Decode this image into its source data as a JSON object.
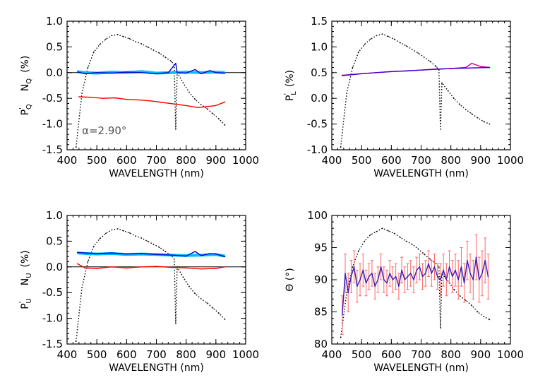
{
  "chart_data": [
    {
      "type": "line",
      "xlabel": "WAVELENGTH (nm)",
      "ylabel": "P'Q   NQ (%)",
      "ylabel_parts": {
        "left_symbol": "P",
        "left_prime": "'",
        "left_sub": "Q",
        "mid_symbol": "N",
        "mid_sub": "Q",
        "unit": "(%)"
      },
      "xlim": [
        400,
        1000
      ],
      "ylim": [
        -1.5,
        1.0
      ],
      "xticks": [
        "400",
        "500",
        "600",
        "700",
        "800",
        "900",
        "1000"
      ],
      "yticks": [
        "-1.5",
        "-1.0",
        "-0.5",
        "0.0",
        "0.5",
        "1.0"
      ],
      "zero_line": true,
      "annotation": {
        "text": "α=2.90°",
        "x": 450,
        "y": -1.2
      },
      "series": [
        {
          "key": "spectrum",
          "color": "#000000",
          "style": "dotted",
          "x": [
            430,
            450,
            470,
            490,
            510,
            530,
            550,
            570,
            590,
            610,
            630,
            650,
            670,
            690,
            710,
            730,
            750,
            760,
            765,
            770,
            790,
            810,
            830,
            850,
            870,
            890,
            910,
            930
          ],
          "y": [
            -1.45,
            -0.4,
            0.1,
            0.4,
            0.55,
            0.65,
            0.72,
            0.74,
            0.7,
            0.66,
            0.6,
            0.56,
            0.5,
            0.44,
            0.38,
            0.3,
            0.22,
            0.15,
            -1.1,
            0.0,
            -0.2,
            -0.38,
            -0.52,
            -0.62,
            -0.7,
            -0.8,
            -0.9,
            -1.02
          ]
        },
        {
          "key": "cyan_band",
          "color": "#00bfff",
          "style": "solid",
          "x": [
            435,
            460,
            500,
            550,
            600,
            650,
            700,
            750,
            800,
            850,
            900,
            930
          ],
          "y": [
            0.02,
            0.0,
            -0.01,
            0.01,
            0.0,
            0.02,
            -0.01,
            0.0,
            0.01,
            0.0,
            0.01,
            0.0
          ]
        },
        {
          "key": "NQ",
          "color": "#0000cc",
          "style": "solid",
          "x": [
            435,
            460,
            500,
            550,
            600,
            650,
            700,
            740,
            765,
            770,
            800,
            830,
            850,
            880,
            900,
            930
          ],
          "y": [
            0.01,
            -0.02,
            0.0,
            -0.01,
            0.01,
            0.0,
            -0.02,
            0.0,
            0.18,
            0.0,
            -0.01,
            0.06,
            -0.02,
            0.04,
            0.0,
            -0.01
          ]
        },
        {
          "key": "PQ",
          "color": "#ff0000",
          "style": "solid",
          "x": [
            440,
            480,
            520,
            560,
            600,
            640,
            680,
            720,
            760,
            800,
            840,
            870,
            900,
            930
          ],
          "y": [
            -0.47,
            -0.48,
            -0.5,
            -0.49,
            -0.52,
            -0.53,
            -0.55,
            -0.58,
            -0.61,
            -0.64,
            -0.68,
            -0.66,
            -0.64,
            -0.57
          ]
        }
      ]
    },
    {
      "type": "line",
      "xlabel": "WAVELENGTH (nm)",
      "ylabel": "P'L (%)",
      "ylabel_parts": {
        "left_symbol": "P",
        "left_prime": "'",
        "left_sub": "L",
        "unit": "(%)"
      },
      "xlim": [
        400,
        1000
      ],
      "ylim": [
        -1.0,
        1.5
      ],
      "xticks": [
        "400",
        "500",
        "600",
        "700",
        "800",
        "900",
        "1000"
      ],
      "yticks": [
        "-1.0",
        "-0.5",
        "0.0",
        "0.5",
        "1.0",
        "1.5"
      ],
      "series": [
        {
          "key": "spectrum",
          "color": "#000000",
          "style": "dotted",
          "x": [
            430,
            450,
            470,
            490,
            510,
            530,
            550,
            570,
            590,
            610,
            630,
            650,
            670,
            690,
            710,
            730,
            750,
            760,
            765,
            770,
            790,
            810,
            830,
            850,
            870,
            890,
            910,
            930
          ],
          "y": [
            -0.95,
            0.1,
            0.6,
            0.9,
            1.05,
            1.15,
            1.22,
            1.25,
            1.2,
            1.15,
            1.08,
            1.02,
            0.95,
            0.88,
            0.8,
            0.72,
            0.62,
            0.55,
            -0.6,
            0.3,
            0.15,
            0.0,
            -0.12,
            -0.22,
            -0.3,
            -0.38,
            -0.45,
            -0.5
          ]
        },
        {
          "key": "PL",
          "color": "#cc0099",
          "style": "solid",
          "x": [
            435,
            460,
            500,
            550,
            600,
            650,
            700,
            750,
            800,
            850,
            870,
            900,
            930
          ],
          "y": [
            0.45,
            0.46,
            0.48,
            0.5,
            0.52,
            0.53,
            0.55,
            0.57,
            0.58,
            0.6,
            0.68,
            0.62,
            0.6
          ]
        },
        {
          "key": "PL_fit",
          "color": "#4400cc",
          "style": "solid",
          "x": [
            435,
            500,
            600,
            700,
            800,
            930
          ],
          "y": [
            0.44,
            0.48,
            0.52,
            0.55,
            0.58,
            0.6
          ]
        }
      ]
    },
    {
      "type": "line",
      "xlabel": "WAVELENGTH (nm)",
      "ylabel": "P'U   NU (%)",
      "ylabel_parts": {
        "left_symbol": "P",
        "left_prime": "'",
        "left_sub": "U",
        "mid_symbol": "N",
        "mid_sub": "U",
        "unit": "(%)"
      },
      "xlim": [
        400,
        1000
      ],
      "ylim": [
        -1.5,
        1.0
      ],
      "xticks": [
        "400",
        "500",
        "600",
        "700",
        "800",
        "900",
        "1000"
      ],
      "yticks": [
        "-1.5",
        "-1.0",
        "-0.5",
        "0.0",
        "0.5",
        "1.0"
      ],
      "zero_line": true,
      "series": [
        {
          "key": "spectrum",
          "color": "#000000",
          "style": "dotted",
          "x": [
            430,
            450,
            470,
            490,
            510,
            530,
            550,
            570,
            590,
            610,
            630,
            650,
            670,
            690,
            710,
            730,
            750,
            760,
            765,
            770,
            790,
            810,
            830,
            850,
            870,
            890,
            910,
            930
          ],
          "y": [
            -1.45,
            -0.4,
            0.1,
            0.4,
            0.55,
            0.65,
            0.72,
            0.74,
            0.7,
            0.66,
            0.6,
            0.56,
            0.5,
            0.44,
            0.38,
            0.3,
            0.22,
            0.15,
            -1.1,
            0.0,
            -0.2,
            -0.38,
            -0.52,
            -0.62,
            -0.7,
            -0.8,
            -0.9,
            -1.02
          ]
        },
        {
          "key": "cyan_band",
          "color": "#00bfff",
          "style": "solid",
          "x": [
            435,
            460,
            500,
            550,
            600,
            650,
            700,
            750,
            800,
            850,
            900,
            930
          ],
          "y": [
            0.27,
            0.26,
            0.25,
            0.26,
            0.24,
            0.25,
            0.24,
            0.23,
            0.22,
            0.23,
            0.24,
            0.21
          ]
        },
        {
          "key": "NU",
          "color": "#0000cc",
          "style": "solid",
          "x": [
            435,
            460,
            500,
            550,
            600,
            650,
            700,
            750,
            800,
            830,
            850,
            880,
            900,
            930
          ],
          "y": [
            0.28,
            0.27,
            0.26,
            0.27,
            0.25,
            0.26,
            0.24,
            0.23,
            0.21,
            0.3,
            0.22,
            0.26,
            0.25,
            0.2
          ]
        },
        {
          "key": "PU",
          "color": "#ff0000",
          "style": "solid",
          "x": [
            435,
            460,
            500,
            550,
            600,
            650,
            700,
            750,
            800,
            850,
            900,
            930
          ],
          "y": [
            0.06,
            -0.02,
            -0.03,
            0.0,
            -0.02,
            0.0,
            0.01,
            -0.01,
            -0.02,
            -0.04,
            -0.03,
            0.0
          ]
        }
      ]
    },
    {
      "type": "line",
      "xlabel": "WAVELENGTH (nm)",
      "ylabel": "Θ (°)",
      "ylabel_parts": {
        "symbol": "Θ",
        "unit": "(°)"
      },
      "xlim": [
        400,
        1000
      ],
      "ylim": [
        80,
        100
      ],
      "xticks": [
        "400",
        "500",
        "600",
        "700",
        "800",
        "900",
        "1000"
      ],
      "yticks": [
        "80",
        "85",
        "90",
        "95",
        "100"
      ],
      "series": [
        {
          "key": "spectrum",
          "color": "#000000",
          "style": "dotted",
          "x": [
            430,
            450,
            470,
            490,
            510,
            530,
            550,
            570,
            590,
            610,
            630,
            650,
            670,
            690,
            710,
            730,
            750,
            760,
            765,
            770,
            790,
            810,
            830,
            850,
            870,
            890,
            910,
            930
          ],
          "y": [
            81,
            88,
            92,
            94.5,
            96,
            97,
            97.5,
            98,
            97.6,
            97.2,
            96.6,
            96,
            95.5,
            94.8,
            94,
            93.2,
            92.5,
            92,
            82.5,
            91,
            89.8,
            88.5,
            87.5,
            86.8,
            86,
            85,
            84.3,
            83.8
          ]
        },
        {
          "key": "theta_err",
          "color": "#ff6666",
          "style": "error",
          "x": [
            435,
            445,
            455,
            465,
            475,
            485,
            495,
            505,
            515,
            525,
            535,
            545,
            555,
            565,
            575,
            585,
            595,
            605,
            615,
            625,
            635,
            645,
            655,
            665,
            675,
            685,
            695,
            705,
            715,
            725,
            735,
            745,
            755,
            765,
            775,
            785,
            795,
            805,
            815,
            825,
            835,
            845,
            855,
            865,
            875,
            885,
            895,
            905,
            915,
            925
          ],
          "y": [
            84.5,
            91,
            88,
            90.5,
            92,
            89,
            90,
            91.5,
            89.5,
            90.5,
            91,
            89,
            90,
            92,
            90,
            89.5,
            91,
            90,
            90.5,
            89,
            91.5,
            90,
            90.5,
            91,
            90,
            91.5,
            92,
            90.5,
            91,
            92.5,
            91,
            92,
            90.5,
            90,
            91.5,
            90,
            92,
            90.5,
            91.5,
            90,
            92,
            89.5,
            93,
            91,
            90,
            93.5,
            90,
            91,
            93,
            90.5
          ],
          "err": [
            3,
            3,
            3,
            2.5,
            2.5,
            2.5,
            2.5,
            2.5,
            2,
            2,
            2,
            2,
            2,
            2,
            2,
            2,
            2,
            2,
            2,
            2,
            2,
            2,
            2,
            2,
            2,
            2,
            2,
            2,
            2,
            2,
            2,
            2,
            2,
            2.5,
            2.5,
            2.5,
            2.5,
            2.5,
            2.5,
            3,
            3,
            3,
            3,
            3,
            3,
            3.5,
            3.5,
            3.5,
            3.5,
            3.5
          ]
        },
        {
          "key": "theta",
          "color": "#3a1fb8",
          "style": "solid",
          "x": [
            435,
            445,
            455,
            465,
            475,
            485,
            495,
            505,
            515,
            525,
            535,
            545,
            555,
            565,
            575,
            585,
            595,
            605,
            615,
            625,
            635,
            645,
            655,
            665,
            675,
            685,
            695,
            705,
            715,
            725,
            735,
            745,
            755,
            765,
            775,
            785,
            795,
            805,
            815,
            825,
            835,
            845,
            855,
            865,
            875,
            885,
            895,
            905,
            915,
            925
          ],
          "y": [
            84.5,
            91,
            88,
            90.5,
            92,
            89,
            90,
            91.5,
            89.5,
            90.5,
            91,
            89,
            90,
            92,
            90,
            89.5,
            91,
            90,
            90.5,
            89,
            91.5,
            90,
            90.5,
            91,
            90,
            91.5,
            92,
            90.5,
            91,
            92.5,
            91,
            92,
            90.5,
            90,
            91.5,
            90,
            92,
            90.5,
            91.5,
            90,
            92,
            89.5,
            93,
            91,
            90,
            93.5,
            90,
            91,
            93,
            90.5
          ]
        }
      ]
    }
  ]
}
